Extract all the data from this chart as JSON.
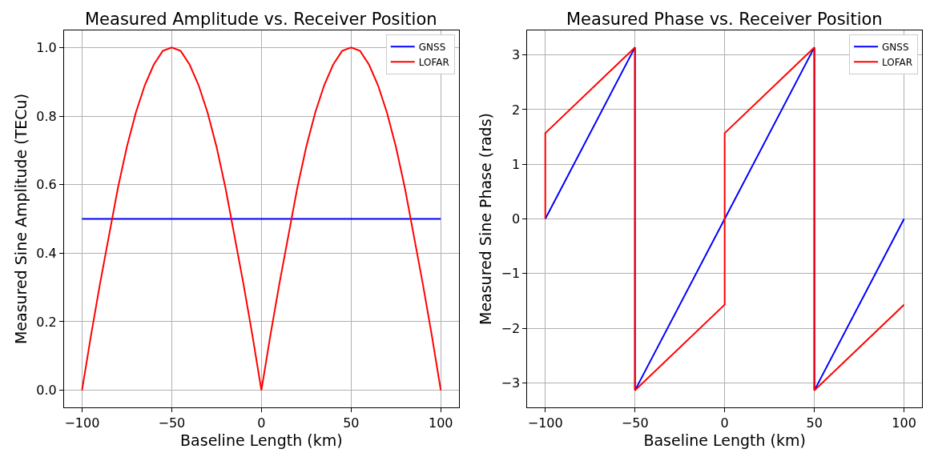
{
  "chart_data": [
    {
      "type": "line",
      "title": "Measured Amplitude vs. Receiver Position",
      "xlabel": "Baseline Length (km)",
      "ylabel": "Measured Sine Amplitude (TECu)",
      "xlim": [
        -110,
        110
      ],
      "ylim": [
        -0.05,
        1.05
      ],
      "xticks": [
        -100,
        -50,
        0,
        50,
        100
      ],
      "yticks": [
        {
          "value": 0,
          "label": "0.0"
        },
        0.2,
        0.4,
        0.6,
        0.8,
        {
          "value": 1,
          "label": "1.0"
        }
      ],
      "grid": true,
      "legend": "top right",
      "marker": "none",
      "line_style": "solid",
      "x": [
        -100,
        -95,
        -90,
        -85,
        -80,
        -75,
        -70,
        -65,
        -60,
        -55,
        -50,
        -45,
        -40,
        -35,
        -30,
        -25,
        -20,
        -15,
        -10,
        -5,
        0,
        5,
        10,
        15,
        20,
        25,
        30,
        35,
        40,
        45,
        50,
        55,
        60,
        65,
        70,
        75,
        80,
        85,
        90,
        95,
        100
      ],
      "series": [
        {
          "name": "GNSS",
          "color": "#0000ff",
          "x": [
            -100,
            100
          ],
          "values": [
            0.5,
            0.5
          ]
        },
        {
          "name": "LOFAR",
          "color": "#ff0000",
          "values": [
            0,
            0.16,
            0.31,
            0.45,
            0.59,
            0.71,
            0.81,
            0.89,
            0.95,
            0.99,
            1.0,
            0.99,
            0.95,
            0.89,
            0.81,
            0.71,
            0.59,
            0.45,
            0.31,
            0.16,
            0,
            0.16,
            0.31,
            0.45,
            0.59,
            0.71,
            0.81,
            0.89,
            0.95,
            0.99,
            1.0,
            0.99,
            0.95,
            0.89,
            0.81,
            0.71,
            0.59,
            0.45,
            0.31,
            0.16,
            0
          ]
        }
      ]
    },
    {
      "type": "line",
      "title": "Measured Phase vs. Receiver Position",
      "xlabel": "Baseline Length (km)",
      "ylabel": "Measured Sine Phase (rads)",
      "xlim": [
        -110,
        110
      ],
      "ylim": [
        -3.45,
        3.45
      ],
      "xticks": [
        -100,
        -50,
        0,
        50,
        100
      ],
      "yticks": [
        -3,
        -2,
        -1,
        0,
        1,
        2,
        3
      ],
      "grid": true,
      "legend": "top right",
      "marker": "none",
      "line_style": "solid",
      "series": [
        {
          "name": "GNSS",
          "color": "#0000ff",
          "x": [
            -100,
            -50,
            -50,
            50,
            50,
            100
          ],
          "values": [
            0,
            3.14,
            -3.14,
            3.14,
            -3.14,
            0
          ]
        },
        {
          "name": "LOFAR",
          "color": "#ff0000",
          "x": [
            -100,
            -100,
            -50,
            -50,
            0,
            0,
            50,
            50,
            100
          ],
          "values": [
            0,
            1.57,
            3.14,
            -3.14,
            -1.57,
            1.57,
            3.14,
            -3.14,
            -1.57
          ]
        }
      ]
    }
  ]
}
